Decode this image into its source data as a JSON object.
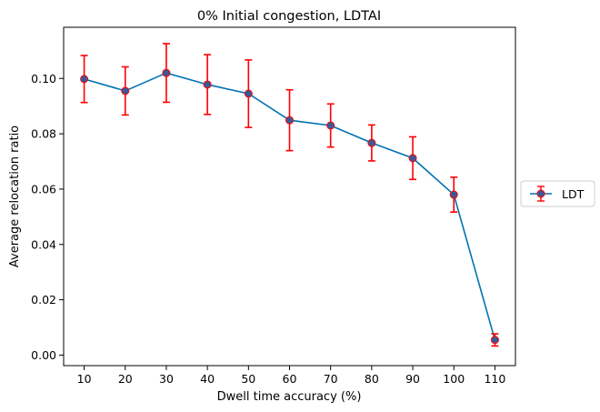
{
  "chart_data": {
    "type": "line",
    "title": "0% Initial congestion, LDTAI",
    "xlabel": "Dwell time accuracy (%)",
    "ylabel": "Average relocation ratio",
    "x": [
      10,
      20,
      30,
      40,
      50,
      60,
      70,
      80,
      90,
      100,
      110
    ],
    "xlim": [
      5,
      115
    ],
    "ylim": [
      -0.0038,
      0.1185
    ],
    "yticks": [
      0.0,
      0.02,
      0.04,
      0.06,
      0.08,
      0.1
    ],
    "ytick_labels": [
      "0.00",
      "0.02",
      "0.04",
      "0.06",
      "0.08",
      "0.10"
    ],
    "grid": false,
    "legend_placement": "center-right-outside",
    "series": [
      {
        "name": "LDT",
        "color": "#1f77b4",
        "line_color": "#0072b2",
        "marker_color": "#3b5998",
        "errorbar_color": "#ff0000",
        "values": [
          0.0998,
          0.0955,
          0.102,
          0.0978,
          0.0945,
          0.0849,
          0.083,
          0.0767,
          0.0712,
          0.058,
          0.0055
        ],
        "error": [
          0.0085,
          0.0087,
          0.0106,
          0.0108,
          0.0122,
          0.011,
          0.0078,
          0.0065,
          0.0077,
          0.0063,
          0.0022
        ]
      }
    ]
  }
}
